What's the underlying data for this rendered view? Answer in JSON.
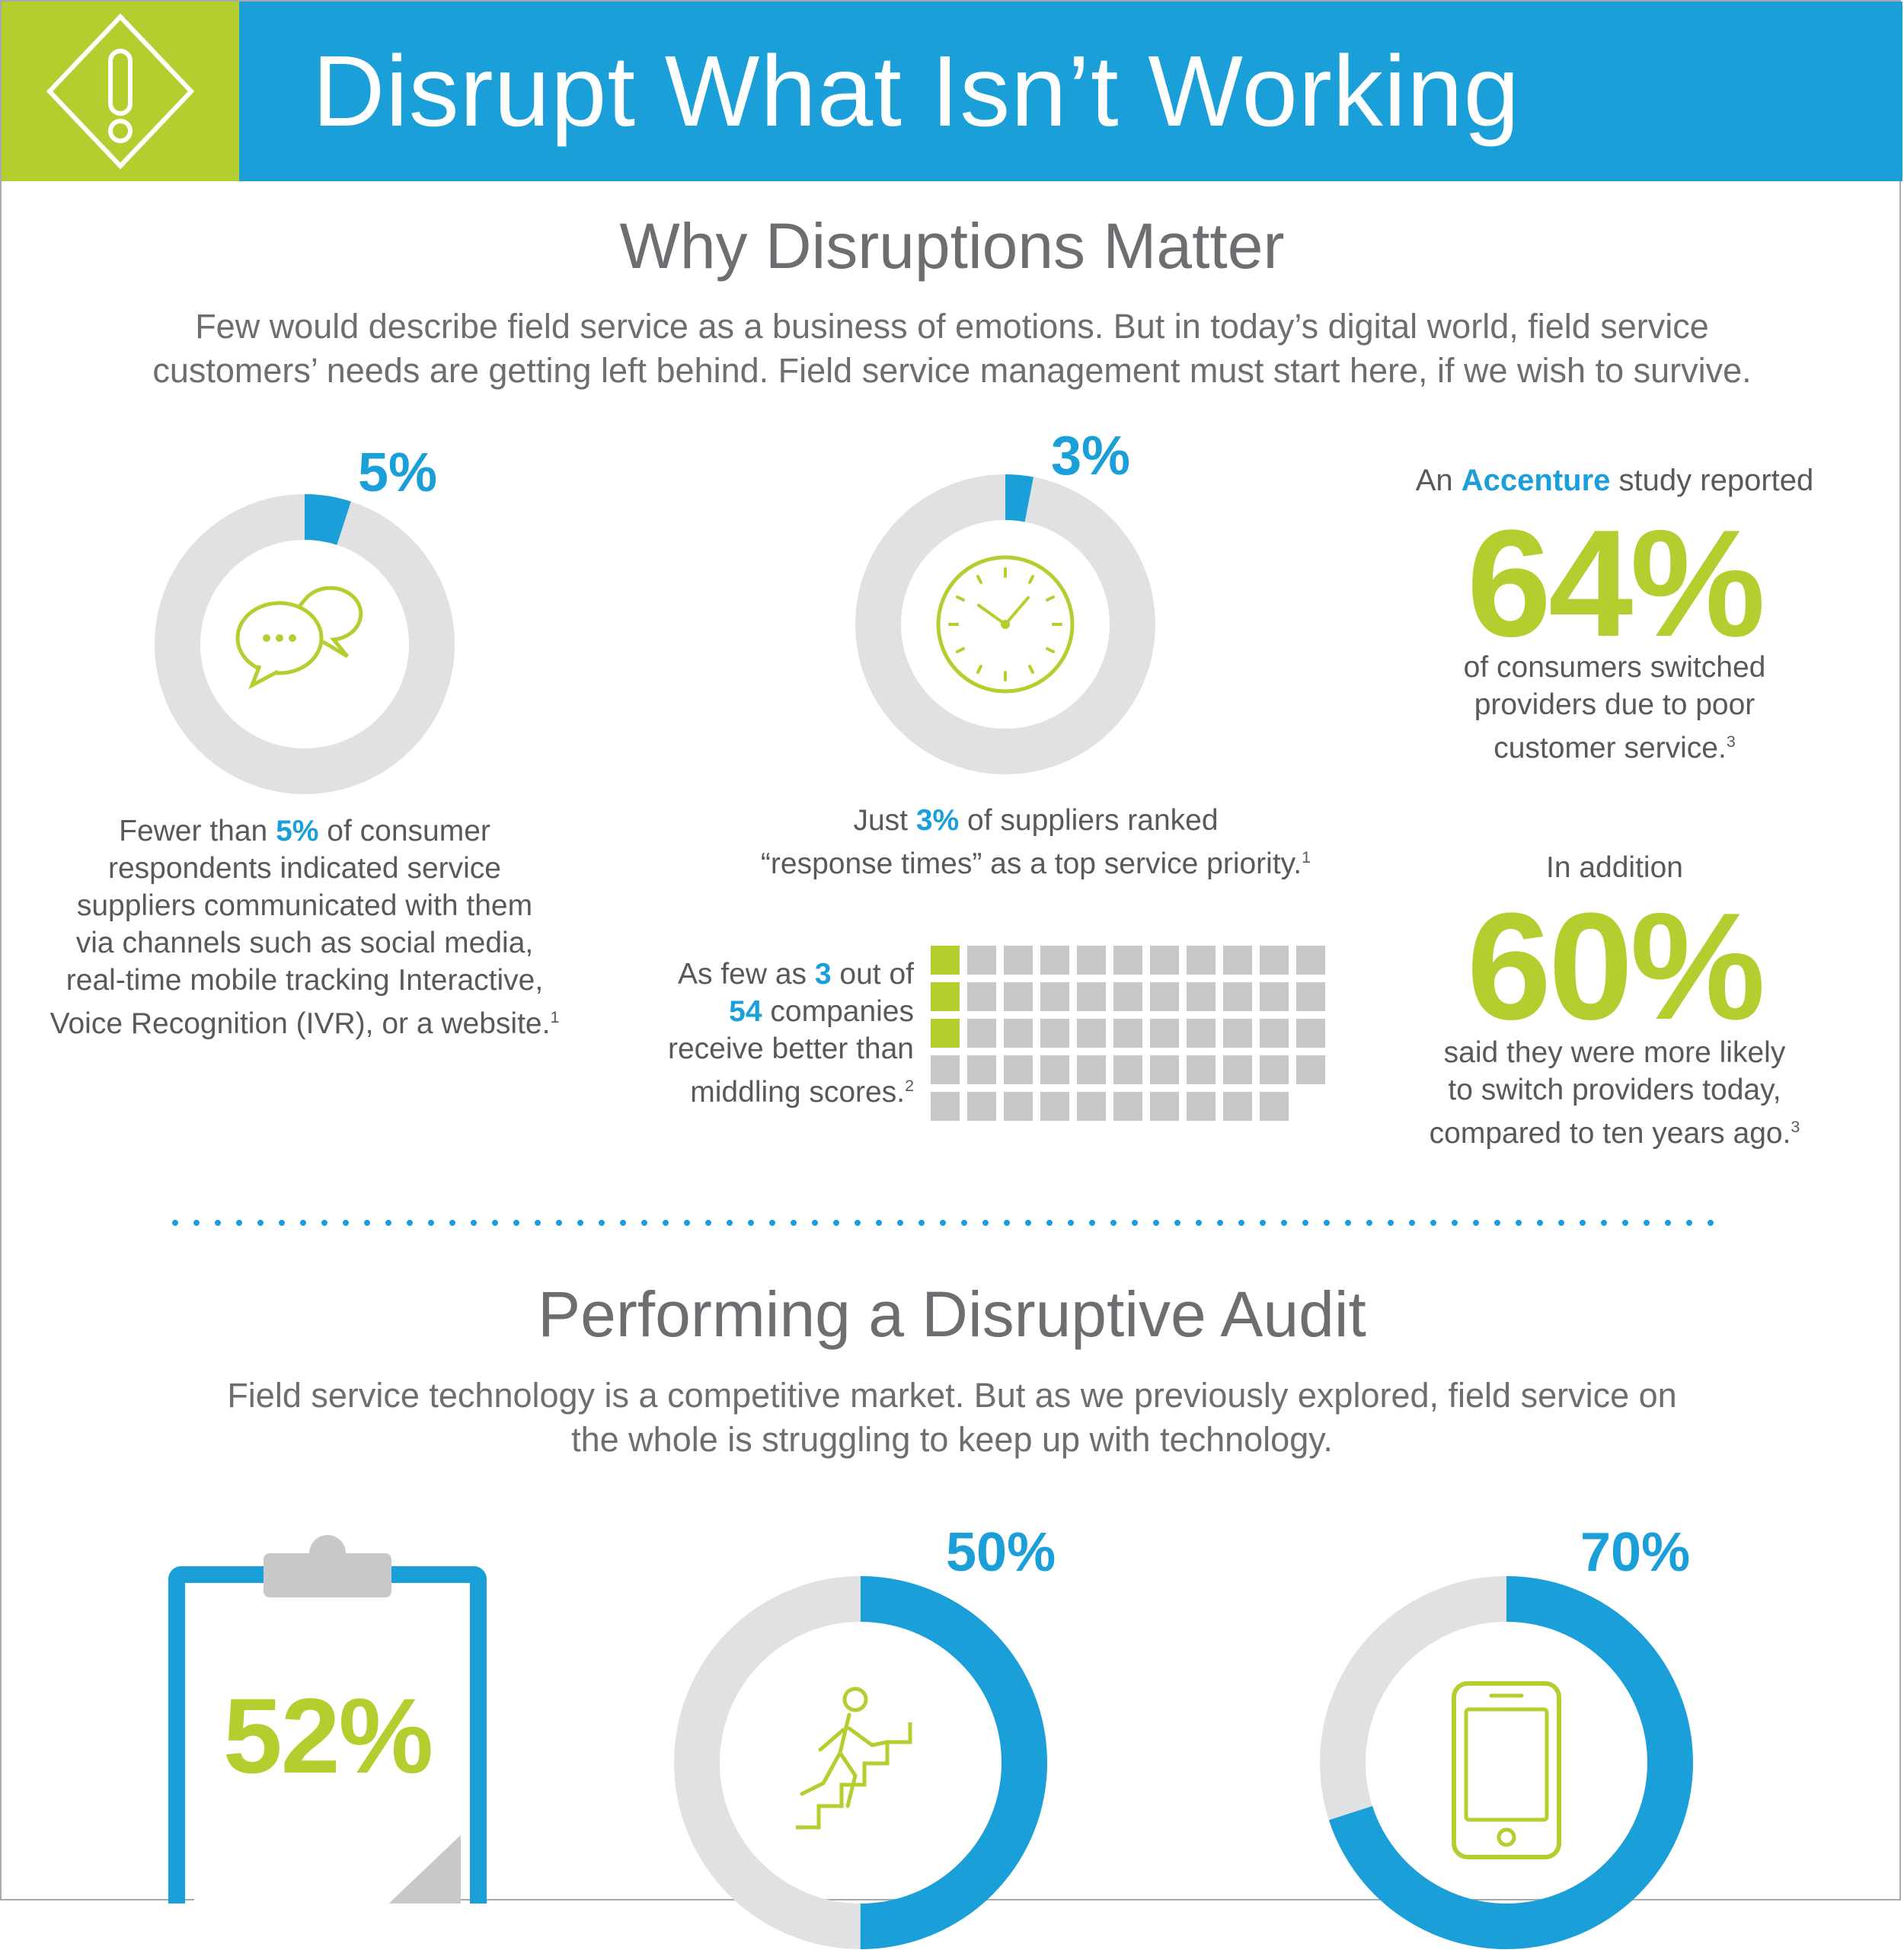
{
  "header": {
    "title": "Disrupt What Isn’t Working",
    "icon": "warning-diamond-icon",
    "colors": {
      "green": "#b3cf2f",
      "blue": "#1a9fd8"
    }
  },
  "section1": {
    "title": "Why Disruptions Matter",
    "intro_line1": "Few would describe field service as a business of emotions. But in today’s digital world, field service",
    "intro_line2": "customers’ needs are getting left behind. Field service management must start here, if we wish to survive.",
    "stat_communication": {
      "percent_label": "5%",
      "value": 5,
      "icon": "chat-bubbles-icon",
      "line1_pre": "Fewer than ",
      "line1_hl": "5%",
      "line1_post": " of consumer",
      "line2": "respondents indicated service",
      "line3": "suppliers communicated with them",
      "line4": "via channels such as social media,",
      "line5": "real-time mobile tracking Interactive,",
      "line6": "Voice Recognition (IVR), or a website.",
      "footnote": "1"
    },
    "stat_response": {
      "percent_label": "3%",
      "value": 3,
      "icon": "clock-icon",
      "line1_pre": "Just ",
      "line1_hl": "3%",
      "line1_post": " of suppliers ranked",
      "line2": "“response times” as a top service priority.",
      "footnote": "1"
    },
    "stat_companies": {
      "line1_pre": "As few as ",
      "line1_hl": "3",
      "line1_post": " out of",
      "line2_hl": "54",
      "line2_post": " companies",
      "line3": "receive better than",
      "line4": "middling scores.",
      "footnote": "2",
      "total": 54,
      "highlighted": 3
    },
    "stat_accenture": {
      "pre": "An ",
      "hl": "Accenture",
      "post": " study reported",
      "big": "64%",
      "line1": "of consumers switched",
      "line2": "providers due to poor",
      "line3": "customer service.",
      "footnote": "3"
    },
    "stat_addition": {
      "pre": "In addition",
      "big": "60%",
      "line1": "said they were more likely",
      "line2": "to switch providers today,",
      "line3": "compared to ten years ago.",
      "footnote": "3"
    }
  },
  "section2": {
    "title": "Performing a Disruptive Audit",
    "intro_line1": "Field service technology is a competitive market. But as we previously explored, field service on",
    "intro_line2": "the whole is struggling to keep up with technology.",
    "clipboard": {
      "big": "52%",
      "icon": "clipboard-icon"
    },
    "donut_stairs": {
      "percent_label": "50%",
      "value": 50,
      "icon": "climbing-stairs-icon"
    },
    "donut_mobile": {
      "percent_label": "70%",
      "value": 70,
      "icon": "mobile-phone-icon"
    }
  }
}
